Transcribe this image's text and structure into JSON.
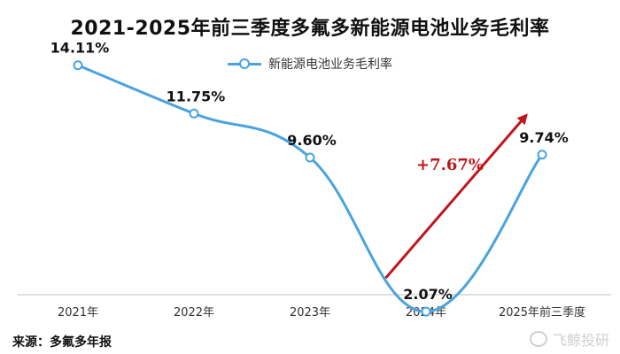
{
  "chart_data": {
    "type": "line",
    "title": "2021-2025年前三季度多氟多新能源电池业务毛利率",
    "categories": [
      "2021年",
      "2022年",
      "2023年",
      "2024年",
      "2025年前三季度"
    ],
    "series": [
      {
        "name": "新能源电池业务毛利率",
        "values": [
          14.11,
          11.75,
          9.6,
          2.07,
          9.74
        ],
        "color": "#4aa3df"
      }
    ],
    "data_labels": [
      "14.11%",
      "11.75%",
      "9.60%",
      "2.07%",
      "9.74%"
    ],
    "annotation": {
      "text": "+7.67%",
      "color": "#c0161c",
      "from_category": "2024年",
      "to_category": "2025年前三季度"
    },
    "ylim": [
      0,
      16
    ],
    "grid": false,
    "legend_position": "top"
  },
  "source_text": "来源：多氟多年报",
  "watermark_text": "飞鲸投研"
}
